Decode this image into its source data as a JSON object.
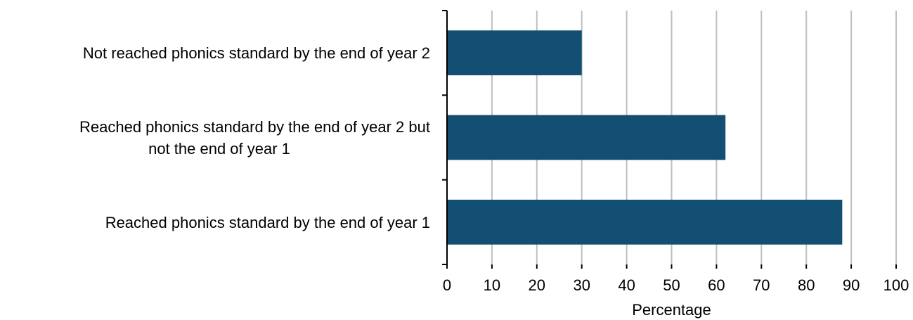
{
  "chart_data": {
    "type": "bar",
    "orientation": "horizontal",
    "categories": [
      [
        "Not reached phonics standard by the end of year 2"
      ],
      [
        "Reached phonics standard by the end of year 2 but",
        "not the end of year 1"
      ],
      [
        "Reached phonics standard by the end of year 1"
      ]
    ],
    "values": [
      30,
      62,
      88
    ],
    "xlabel": "Percentage",
    "xlim": [
      0,
      100
    ],
    "xticks": [
      "0",
      "10",
      "20",
      "30",
      "40",
      "50",
      "60",
      "70",
      "80",
      "90",
      "100"
    ],
    "grid": "vertical",
    "bar_color": "#124f73",
    "grid_color": "#bfbfbf"
  }
}
